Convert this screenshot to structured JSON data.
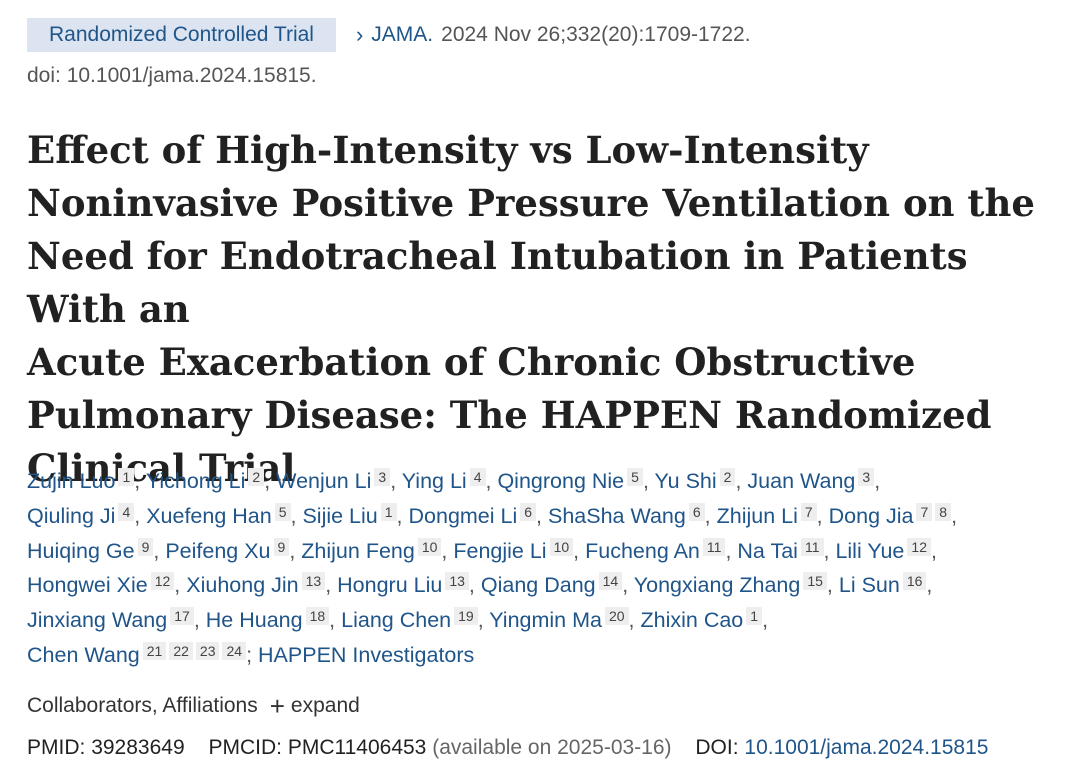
{
  "header": {
    "badge": "Randomized Controlled Trial",
    "chevron": "›",
    "journal": "JAMA.",
    "citation": "2024 Nov 26;332(20):1709-1722.",
    "doi_line": "doi: 10.1001/jama.2024.15815."
  },
  "title_lines": [
    "Effect of High-Intensity vs Low-Intensity",
    "Noninvasive Positive Pressure Ventilation on the",
    "Need for Endotracheal Intubation in Patients With an",
    "Acute Exacerbation of Chronic Obstructive",
    "Pulmonary Disease: The HAPPEN Randomized",
    "Clinical Trial"
  ],
  "authors": [
    {
      "name": "Zujin Luo",
      "affs": [
        "1"
      ]
    },
    {
      "name": "Yichong Li",
      "affs": [
        "2"
      ]
    },
    {
      "name": "Wenjun Li",
      "affs": [
        "3"
      ]
    },
    {
      "name": "Ying Li",
      "affs": [
        "4"
      ]
    },
    {
      "name": "Qingrong Nie",
      "affs": [
        "5"
      ]
    },
    {
      "name": "Yu Shi",
      "affs": [
        "2"
      ]
    },
    {
      "name": "Juan Wang",
      "affs": [
        "3"
      ],
      "break_after": true
    },
    {
      "name": "Qiuling Ji",
      "affs": [
        "4"
      ]
    },
    {
      "name": "Xuefeng Han",
      "affs": [
        "5"
      ]
    },
    {
      "name": "Sijie Liu",
      "affs": [
        "1"
      ]
    },
    {
      "name": "Dongmei Li",
      "affs": [
        "6"
      ]
    },
    {
      "name": "ShaSha Wang",
      "affs": [
        "6"
      ]
    },
    {
      "name": "Zhijun Li",
      "affs": [
        "7"
      ]
    },
    {
      "name": "Dong Jia",
      "affs": [
        "7",
        "8"
      ],
      "break_after": true
    },
    {
      "name": "Huiqing Ge",
      "affs": [
        "9"
      ]
    },
    {
      "name": "Peifeng Xu",
      "affs": [
        "9"
      ]
    },
    {
      "name": "Zhijun Feng",
      "affs": [
        "10"
      ]
    },
    {
      "name": "Fengjie Li",
      "affs": [
        "10"
      ]
    },
    {
      "name": "Fucheng An",
      "affs": [
        "11"
      ]
    },
    {
      "name": "Na Tai",
      "affs": [
        "11"
      ]
    },
    {
      "name": "Lili Yue",
      "affs": [
        "12"
      ],
      "break_after": true
    },
    {
      "name": "Hongwei Xie",
      "affs": [
        "12"
      ]
    },
    {
      "name": "Xiuhong Jin",
      "affs": [
        "13"
      ]
    },
    {
      "name": "Hongru Liu",
      "affs": [
        "13"
      ]
    },
    {
      "name": "Qiang Dang",
      "affs": [
        "14"
      ]
    },
    {
      "name": "Yongxiang Zhang",
      "affs": [
        "15"
      ]
    },
    {
      "name": "Li Sun",
      "affs": [
        "16"
      ],
      "break_after": true
    },
    {
      "name": "Jinxiang Wang",
      "affs": [
        "17"
      ]
    },
    {
      "name": "He Huang",
      "affs": [
        "18"
      ]
    },
    {
      "name": "Liang Chen",
      "affs": [
        "19"
      ]
    },
    {
      "name": "Yingmin Ma",
      "affs": [
        "20"
      ]
    },
    {
      "name": "Zhixin Cao",
      "affs": [
        "1"
      ],
      "break_after": true
    },
    {
      "name": "Chen Wang",
      "affs": [
        "21",
        "22",
        "23",
        "24"
      ]
    }
  ],
  "group_author": "HAPPEN Investigators",
  "collab": {
    "label": "Collaborators, Affiliations",
    "plus": "+",
    "expand": "expand"
  },
  "ids": {
    "pmid_label": "PMID:",
    "pmid": "39283649",
    "pmcid_label": "PMCID:",
    "pmcid": "PMC11406453",
    "available": "(available on 2025-03-16)",
    "doi_label": "DOI:",
    "doi": "10.1001/jama.2024.15815"
  },
  "colors": {
    "link": "#20558a",
    "badge_bg": "#dbe4f0",
    "sup_bg": "#eeeeee"
  }
}
